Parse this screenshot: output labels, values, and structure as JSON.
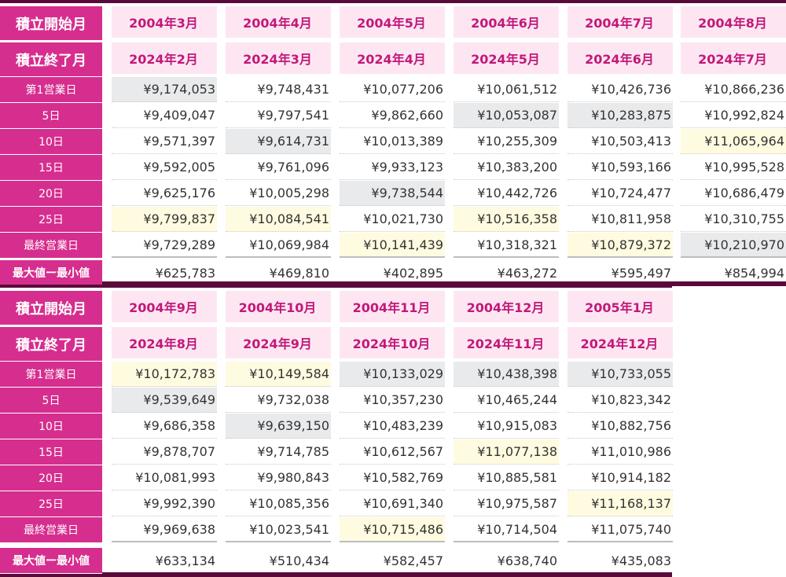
{
  "labels": {
    "start": "積立開始月",
    "end": "積立終了月",
    "days": [
      "第1営業日",
      "5日",
      "10日",
      "15日",
      "20日",
      "25日",
      "最終営業日"
    ],
    "diff": "最大値ー最小値"
  },
  "table1": {
    "starts": [
      "2004年3月",
      "2004年4月",
      "2004年5月",
      "2004年6月",
      "2004年7月",
      "2004年8月"
    ],
    "ends": [
      "2024年2月",
      "2024年3月",
      "2024年4月",
      "2024年5月",
      "2024年6月",
      "2024年7月"
    ],
    "rows": [
      [
        "¥9,174,053",
        "¥9,748,431",
        "¥10,077,206",
        "¥10,061,512",
        "¥10,426,736",
        "¥10,866,236"
      ],
      [
        "¥9,409,047",
        "¥9,797,541",
        "¥9,862,660",
        "¥10,053,087",
        "¥10,283,875",
        "¥10,992,824"
      ],
      [
        "¥9,571,397",
        "¥9,614,731",
        "¥10,013,389",
        "¥10,255,309",
        "¥10,503,413",
        "¥11,065,964"
      ],
      [
        "¥9,592,005",
        "¥9,761,096",
        "¥9,933,123",
        "¥10,383,200",
        "¥10,593,166",
        "¥10,995,528"
      ],
      [
        "¥9,625,176",
        "¥10,005,298",
        "¥9,738,544",
        "¥10,442,726",
        "¥10,724,477",
        "¥10,686,479"
      ],
      [
        "¥9,799,837",
        "¥10,084,541",
        "¥10,021,730",
        "¥10,516,358",
        "¥10,811,958",
        "¥10,310,755"
      ],
      [
        "¥9,729,289",
        "¥10,069,984",
        "¥10,141,439",
        "¥10,318,321",
        "¥10,879,372",
        "¥10,210,970"
      ]
    ],
    "diff": [
      "¥625,783",
      "¥469,810",
      "¥402,895",
      "¥463,272",
      "¥595,497",
      "¥854,994"
    ],
    "min_rows": [
      0,
      2,
      4,
      1,
      1,
      6
    ],
    "max_rows": [
      5,
      5,
      6,
      5,
      6,
      2
    ]
  },
  "table2": {
    "starts": [
      "2004年9月",
      "2004年10月",
      "2004年11月",
      "2004年12月",
      "2005年1月"
    ],
    "ends": [
      "2024年8月",
      "2024年9月",
      "2024年10月",
      "2024年11月",
      "2024年12月"
    ],
    "rows": [
      [
        "¥10,172,783",
        "¥10,149,584",
        "¥10,133,029",
        "¥10,438,398",
        "¥10,733,055"
      ],
      [
        "¥9,539,649",
        "¥9,732,038",
        "¥10,357,230",
        "¥10,465,244",
        "¥10,823,342"
      ],
      [
        "¥9,686,358",
        "¥9,639,150",
        "¥10,483,239",
        "¥10,915,083",
        "¥10,882,756"
      ],
      [
        "¥9,878,707",
        "¥9,714,785",
        "¥10,612,567",
        "¥11,077,138",
        "¥11,010,986"
      ],
      [
        "¥10,081,993",
        "¥9,980,843",
        "¥10,582,769",
        "¥10,885,581",
        "¥10,914,182"
      ],
      [
        "¥9,992,390",
        "¥10,085,356",
        "¥10,691,340",
        "¥10,975,587",
        "¥11,168,137"
      ],
      [
        "¥9,969,638",
        "¥10,023,541",
        "¥10,715,486",
        "¥10,714,504",
        "¥11,075,740"
      ]
    ],
    "diff": [
      "¥633,134",
      "¥510,434",
      "¥582,457",
      "¥638,740",
      "¥435,083"
    ],
    "min_rows": [
      1,
      2,
      0,
      0,
      0
    ],
    "max_rows": [
      0,
      0,
      6,
      3,
      5
    ]
  }
}
